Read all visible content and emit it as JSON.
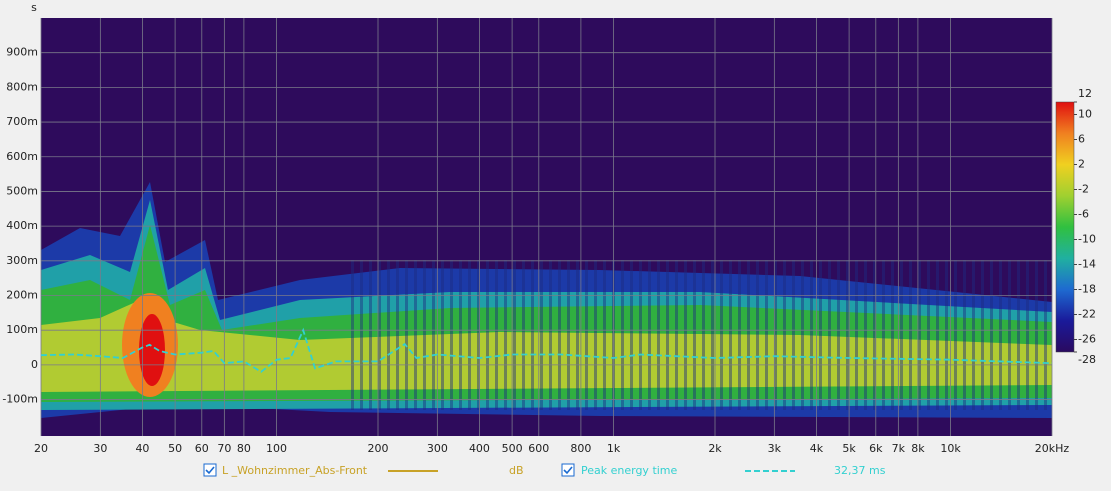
{
  "chart_data": {
    "type": "spectrogram",
    "y_unit": "s",
    "xlog": true,
    "xlim": [
      20,
      20000
    ],
    "xticks": [
      20,
      30,
      40,
      50,
      60,
      70,
      80,
      100,
      200,
      300,
      400,
      500,
      600,
      800,
      {
        "value": 1000,
        "label": "1k"
      },
      {
        "value": 2000,
        "label": "2k"
      },
      {
        "value": 3000,
        "label": "3k"
      },
      {
        "value": 4000,
        "label": "4k"
      },
      {
        "value": 5000,
        "label": "5k"
      },
      {
        "value": 6000,
        "label": "6k"
      },
      {
        "value": 7000,
        "label": "7k"
      },
      {
        "value": 8000,
        "label": "8k"
      },
      {
        "value": 10000,
        "label": "10k"
      },
      {
        "value": 20000,
        "label": "20kHz"
      }
    ],
    "ylim": [
      -0.205,
      1.0
    ],
    "yticks": [
      {
        "value": -0.1,
        "label": "-100m"
      },
      0,
      {
        "value": 0.1,
        "label": "100m"
      },
      {
        "value": 0.2,
        "label": "200m"
      },
      {
        "value": 0.3,
        "label": "300m"
      },
      {
        "value": 0.4,
        "label": "400m"
      },
      {
        "value": 0.5,
        "label": "500m"
      },
      {
        "value": 0.6,
        "label": "600m"
      },
      {
        "value": 0.7,
        "label": "700m"
      },
      {
        "value": 0.8,
        "label": "800m"
      },
      {
        "value": 0.9,
        "label": "900m"
      }
    ],
    "grid": true,
    "spectrogram": {
      "name": "L _Wohnzimmer_Abs-Front",
      "unit": "dB",
      "color": "#c8a227"
    },
    "colorbar": {
      "zlim": [
        -28,
        12
      ],
      "ticks": [
        12,
        10,
        6,
        2,
        -2,
        -6,
        -10,
        -14,
        -18,
        -22,
        -26,
        -28
      ],
      "colors": [
        "#2a0a60",
        "#1a1a9a",
        "#1e6ad0",
        "#20b0a0",
        "#30c040",
        "#a0d030",
        "#f0d020",
        "#f08020",
        "#e01010"
      ]
    },
    "series": [
      {
        "name": "Peak energy time",
        "color": "#33d0d0",
        "readout": "32,37 ms",
        "x": [
          20,
          25,
          30,
          35,
          40,
          42,
          45,
          50,
          60,
          65,
          70,
          80,
          90,
          100,
          110,
          120,
          130,
          150,
          200,
          240,
          260,
          300,
          400,
          500,
          700,
          1000,
          1200,
          2000,
          3000,
          5000,
          10000,
          20000
        ],
        "values": [
          0.028,
          0.03,
          0.025,
          0.02,
          0.05,
          0.058,
          0.04,
          0.03,
          0.035,
          0.04,
          0.005,
          0.01,
          -0.02,
          0.015,
          0.02,
          0.1,
          -0.01,
          0.01,
          0.01,
          0.06,
          0.02,
          0.03,
          0.02,
          0.03,
          0.03,
          0.02,
          0.03,
          0.02,
          0.025,
          0.02,
          0.015,
          0.005
        ]
      }
    ]
  }
}
